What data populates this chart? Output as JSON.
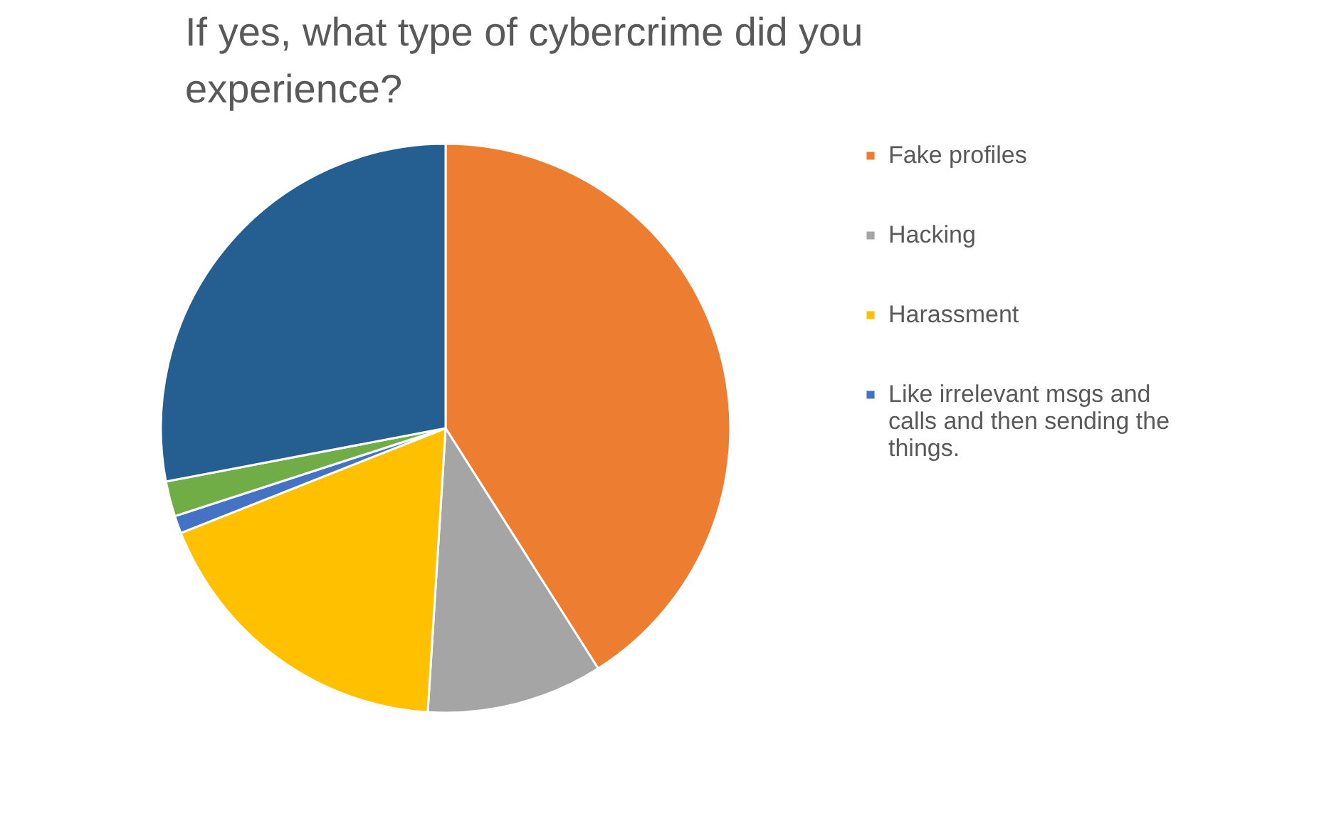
{
  "chart_data": {
    "type": "pie",
    "title": "If yes, what type of cybercrime did you experience?",
    "categories": [
      "Fake profiles",
      "Hacking",
      "Harassment",
      "Like irrelevant msgs and calls and then sending the things.",
      null,
      null
    ],
    "values": [
      41,
      10,
      18,
      1,
      2,
      28
    ],
    "colors": [
      "#ed7d31",
      "#a5a5a5",
      "#ffc000",
      "#4472c4",
      "#70ad47",
      "#255e91"
    ],
    "legend": "right"
  }
}
